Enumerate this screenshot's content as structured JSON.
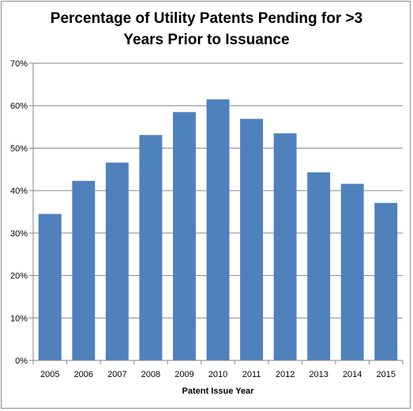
{
  "chart_data": {
    "type": "bar",
    "title": "Percentage of Utility Patents Pending for >3\nYears Prior to Issuance",
    "xlabel": "Patent Issue Year",
    "ylabel": "",
    "categories": [
      "2005",
      "2006",
      "2007",
      "2008",
      "2009",
      "2010",
      "2011",
      "2012",
      "2013",
      "2014",
      "2015"
    ],
    "values": [
      34.5,
      42.3,
      46.6,
      53.1,
      58.5,
      61.5,
      56.9,
      53.5,
      44.3,
      41.6,
      37.1
    ],
    "ylim": [
      0,
      70
    ],
    "yticks": [
      "0%",
      "10%",
      "20%",
      "30%",
      "40%",
      "50%",
      "60%",
      "70%"
    ],
    "grid": true,
    "legend": "none",
    "bar_color": "#4f81bd"
  }
}
